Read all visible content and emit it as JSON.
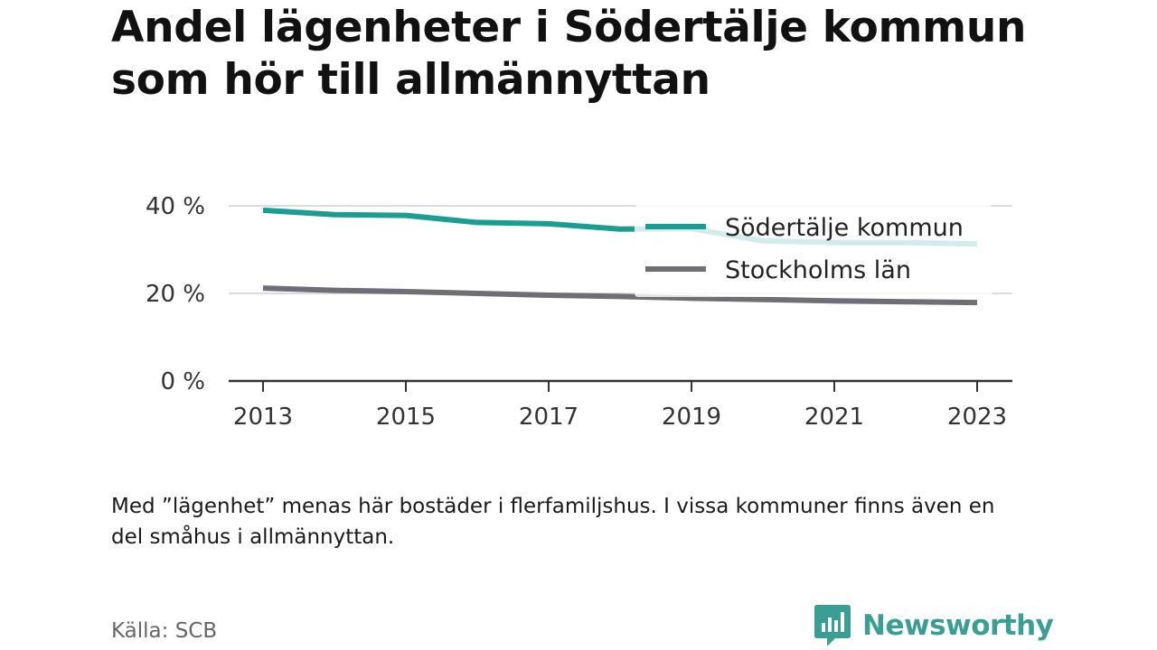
{
  "title": "Andel lägenheter i Södertälje kommun som hör till allmännyttan",
  "note": "Med ”lägenhet” menas här bostäder i flerfamiljshus. I vissa kommuner finns även en del småhus i allmännyttan.",
  "source": "Källa: SCB",
  "brand": "Newsworthy",
  "colors": {
    "sodertalje": "#1a9e94",
    "stockholm": "#6e6e76",
    "brand": "#3a9e95"
  },
  "chart_data": {
    "type": "line",
    "x": [
      2013,
      2014,
      2015,
      2016,
      2017,
      2018,
      2019,
      2020,
      2021,
      2022,
      2023
    ],
    "x_ticks": [
      "2013",
      "2015",
      "2017",
      "2019",
      "2021",
      "2023"
    ],
    "y_ticks": [
      "0 %",
      "20 %",
      "40 %"
    ],
    "ylim": [
      0,
      40
    ],
    "grid": true,
    "legend_position": "top-right",
    "series": [
      {
        "name": "Södertälje kommun",
        "color": "#1a9e94",
        "values": [
          39.0,
          38.0,
          37.8,
          36.2,
          35.9,
          34.7,
          34.8,
          32.0,
          31.6,
          31.6,
          31.3
        ]
      },
      {
        "name": "Stockholms län",
        "color": "#6e6e76",
        "values": [
          21.2,
          20.7,
          20.4,
          20.0,
          19.6,
          19.3,
          18.9,
          18.6,
          18.3,
          18.1,
          17.9
        ]
      }
    ]
  }
}
